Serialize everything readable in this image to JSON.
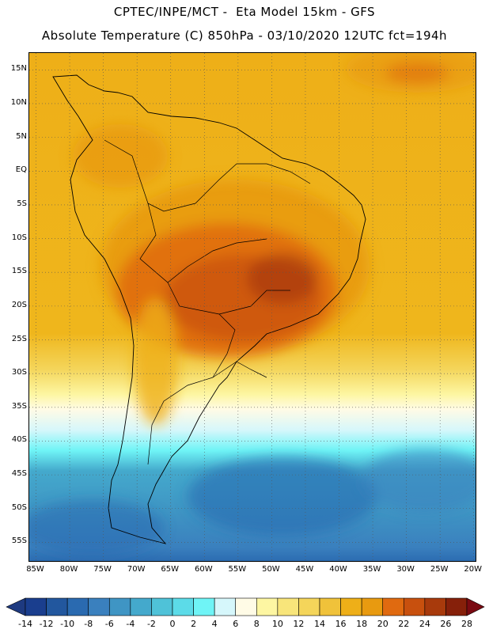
{
  "header": {
    "line1": "CPTEC/INPE/MCT -  Eta Model 15km - GFS",
    "line2": "Absolute Temperature (C) 850hPa - 03/10/2020 12UTC fct=194h"
  },
  "map": {
    "lat_labels": [
      "15N",
      "10N",
      "5N",
      "EQ",
      "5S",
      "10S",
      "15S",
      "20S",
      "25S",
      "30S",
      "35S",
      "40S",
      "45S",
      "50S",
      "55S"
    ],
    "lat_values": [
      15,
      10,
      5,
      0,
      -5,
      -10,
      -15,
      -20,
      -25,
      -30,
      -35,
      -40,
      -45,
      -50,
      -55
    ],
    "lon_labels": [
      "85W",
      "80W",
      "75W",
      "70W",
      "65W",
      "60W",
      "55W",
      "50W",
      "45W",
      "40W",
      "35W",
      "30W",
      "25W",
      "20W"
    ],
    "lon_values": [
      -85,
      -80,
      -75,
      -70,
      -65,
      -60,
      -55,
      -50,
      -45,
      -40,
      -35,
      -30,
      -25,
      -20
    ],
    "lon_range": [
      -86,
      -19.5
    ],
    "lat_range": [
      -58,
      17.5
    ],
    "gridlines": true,
    "gridline_style": "dotted"
  },
  "colorbar": {
    "labels": [
      "-14",
      "-12",
      "-10",
      "-8",
      "-6",
      "-4",
      "-2",
      "0",
      "2",
      "4",
      "6",
      "8",
      "10",
      "12",
      "14",
      "16",
      "18",
      "20",
      "22",
      "24",
      "26",
      "28"
    ],
    "colors": [
      "#1a3e8e",
      "#22579e",
      "#2a6ab0",
      "#3a80be",
      "#3f95c4",
      "#44a9cc",
      "#4fc2d8",
      "#5cdbe8",
      "#6ff4f6",
      "#d6f7fb",
      "#fffbe6",
      "#fdf6a2",
      "#f8e57a",
      "#f4d55a",
      "#f0c23a",
      "#eeaf18",
      "#e89a10",
      "#e06a10",
      "#c8500e",
      "#a83a0c",
      "#86200a"
    ],
    "low_color": "#1e3a80",
    "high_color": "#7a0a12"
  }
}
